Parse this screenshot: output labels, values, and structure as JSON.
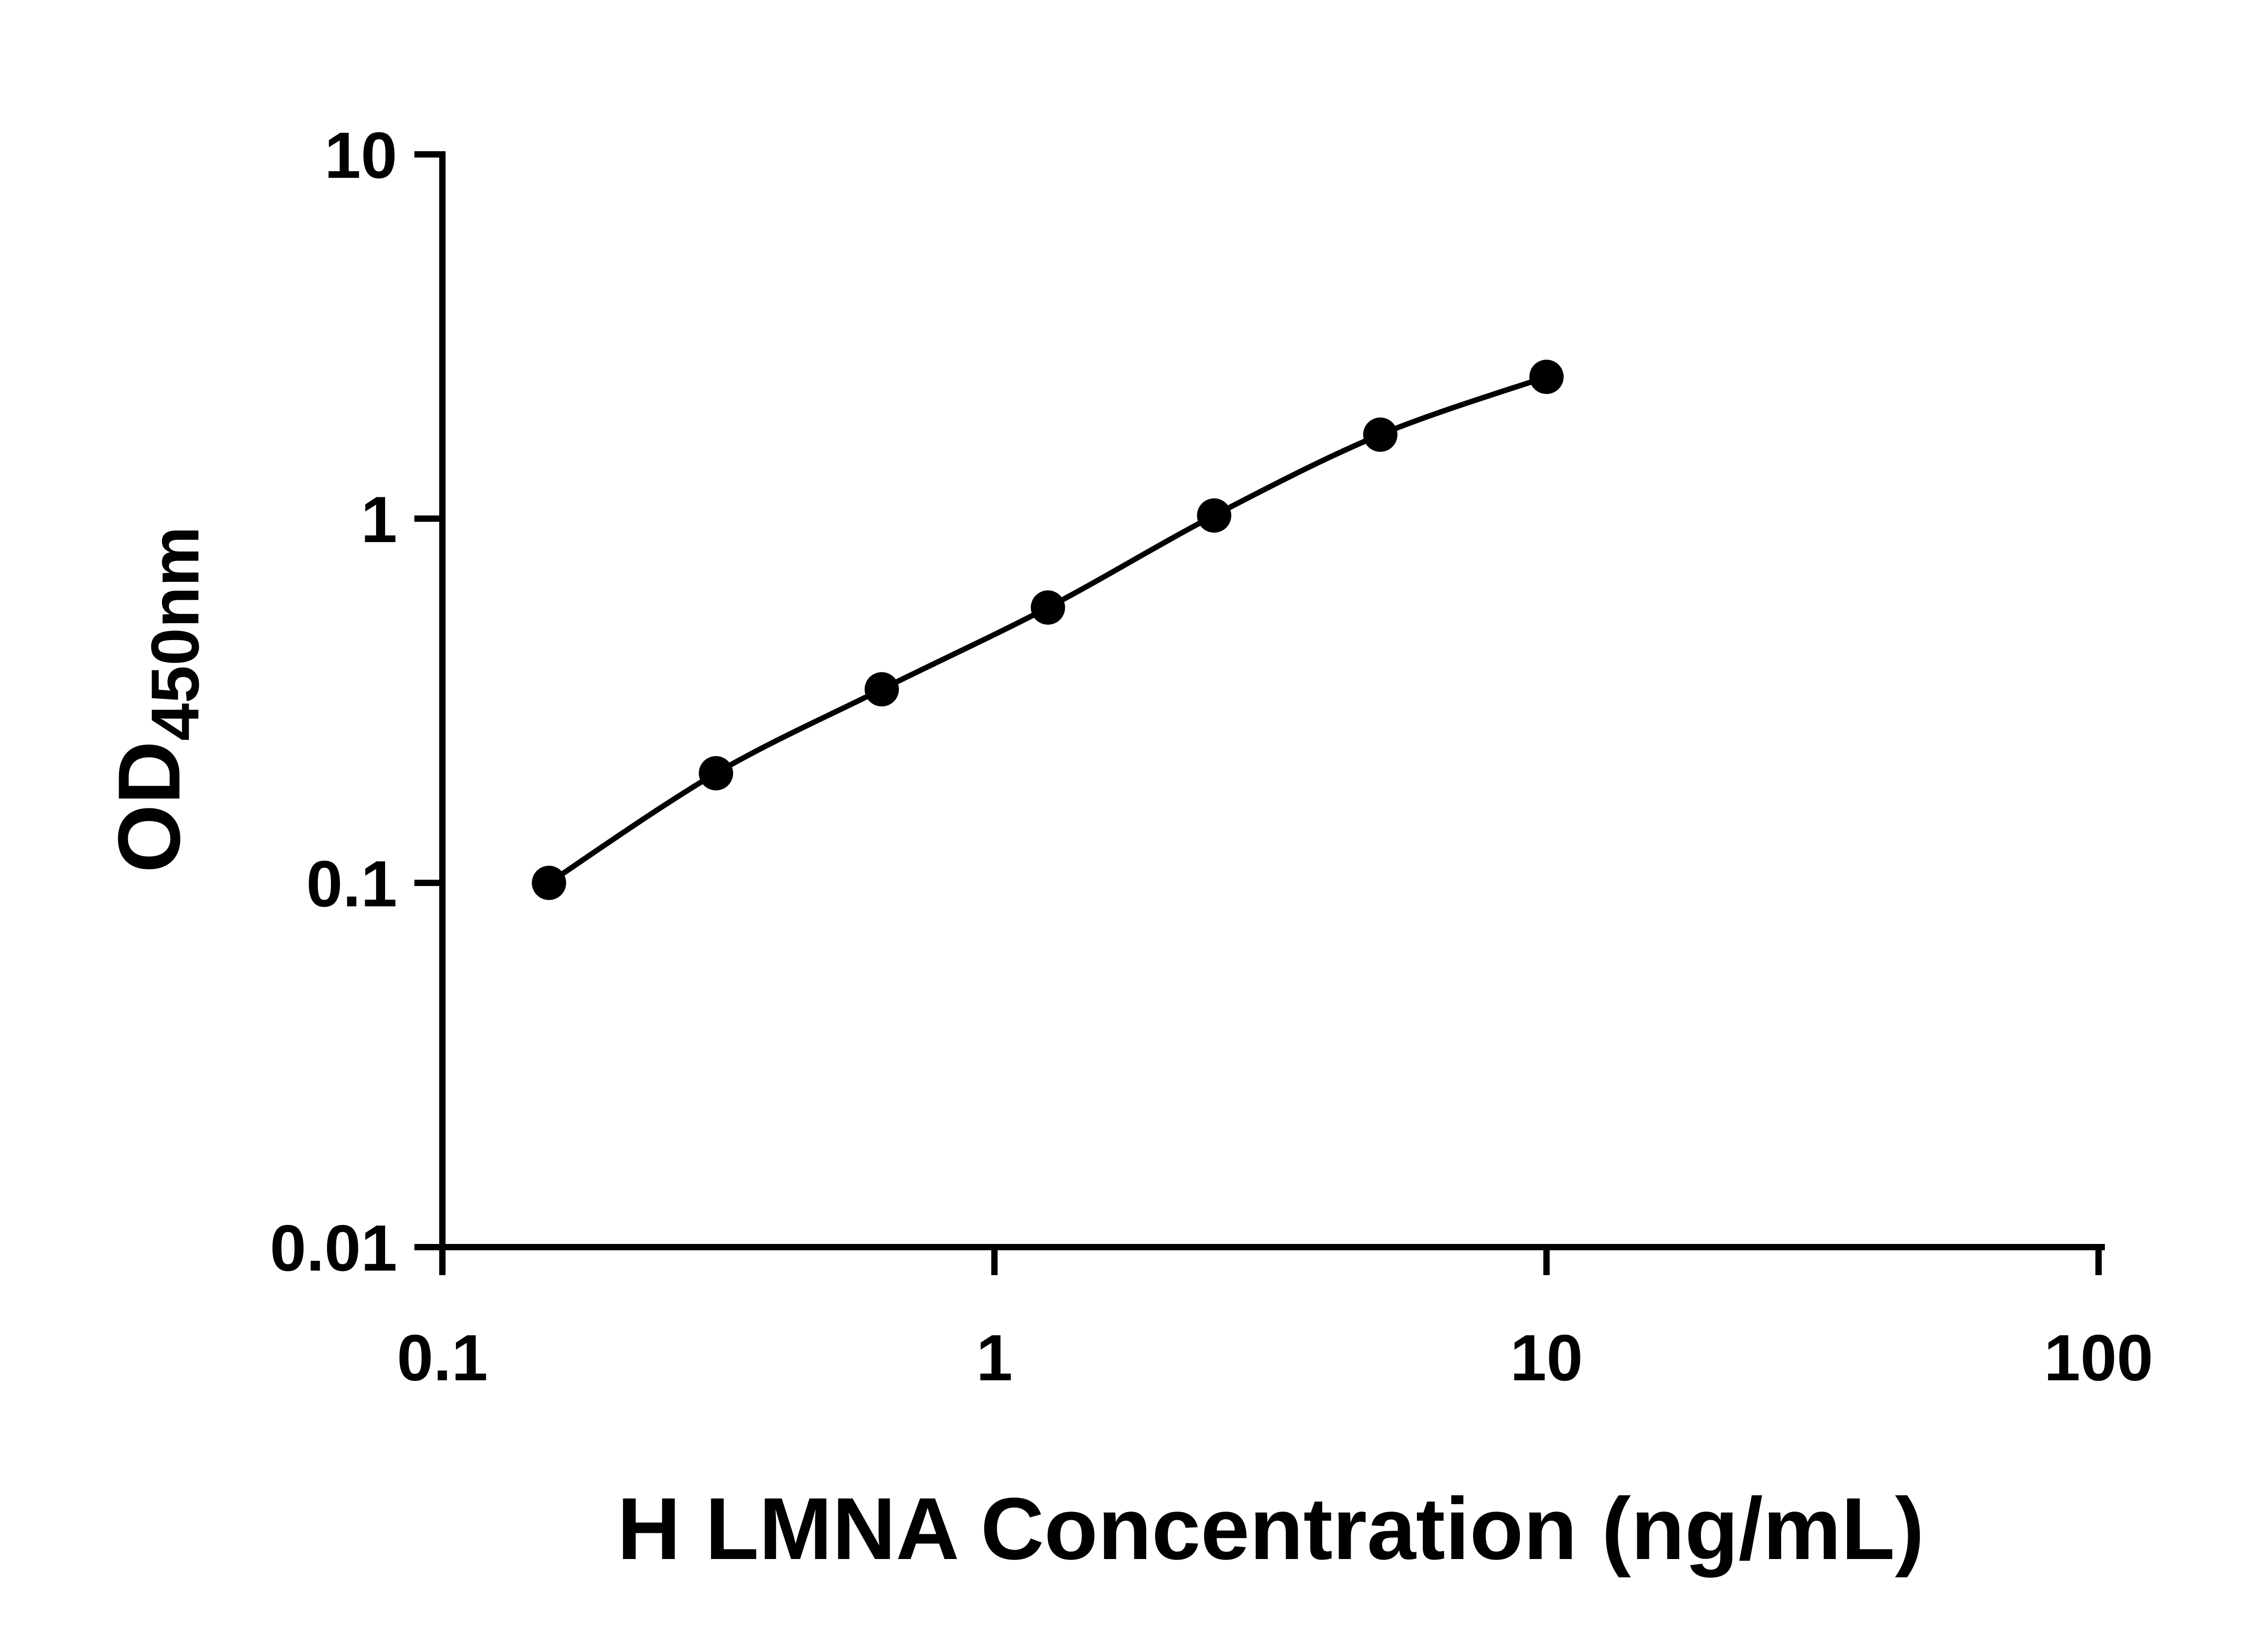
{
  "figure": {
    "background_color": "#ffffff",
    "axis_color": "#000000",
    "text_color": "#000000"
  },
  "chart_data": {
    "type": "scatter",
    "subtype": "log-log ELISA standard curve, points connected by smooth fitted line",
    "title": "",
    "xlabel": "H LMNA Concentration (ng/mL)",
    "ylabel_main": "OD",
    "ylabel_sub": "450nm",
    "x_scale": "log10",
    "y_scale": "log10",
    "xlim": [
      0.1,
      100
    ],
    "ylim": [
      0.01,
      10
    ],
    "x_ticks": [
      0.1,
      1,
      10,
      100
    ],
    "x_tick_labels": [
      "0.1",
      "1",
      "10",
      "100"
    ],
    "y_ticks": [
      10,
      1,
      0.1,
      0.01
    ],
    "y_tick_labels": [
      "10",
      "1",
      "0.1",
      "0.01"
    ],
    "grid": false,
    "legend": "none",
    "marker_color": "#000000",
    "line_color": "#000000",
    "points": [
      {
        "x": 0.156,
        "y": 0.1
      },
      {
        "x": 0.313,
        "y": 0.2
      },
      {
        "x": 0.625,
        "y": 0.34
      },
      {
        "x": 1.25,
        "y": 0.57
      },
      {
        "x": 2.5,
        "y": 1.02
      },
      {
        "x": 5,
        "y": 1.7
      },
      {
        "x": 10,
        "y": 2.45
      }
    ]
  }
}
